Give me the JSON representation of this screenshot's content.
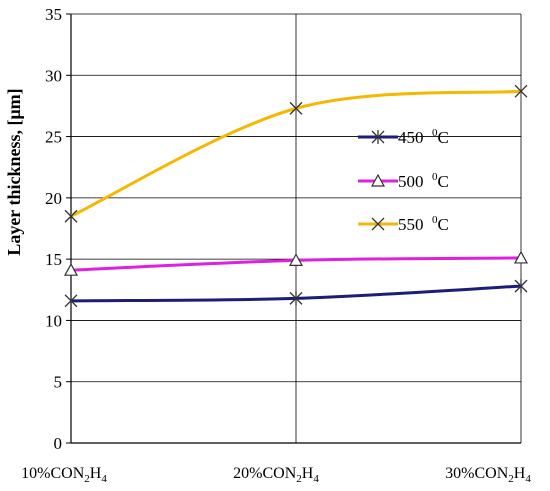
{
  "chart_data": {
    "type": "line",
    "title": "",
    "xlabel": "",
    "ylabel": "Layer thickness, [μm]",
    "ylim": [
      0,
      35
    ],
    "yticks": [
      "0",
      "5",
      "10",
      "15",
      "20",
      "25",
      "30",
      "35"
    ],
    "categories": [
      {
        "main": "10%CON",
        "sub": "2",
        "main2": "H",
        "sub2": "4"
      },
      {
        "main": "20%CON",
        "sub": "2",
        "main2": "H",
        "sub2": "4"
      },
      {
        "main": "30%CON",
        "sub": "2",
        "main2": "H",
        "sub2": "4"
      }
    ],
    "grid": true,
    "legend_position": "right",
    "series": [
      {
        "name": "450",
        "unit_sup": "0",
        "unit": "C",
        "color": "#1c1c7a",
        "marker": "star",
        "values": [
          11.6,
          11.8,
          12.8
        ]
      },
      {
        "name": "500",
        "unit_sup": "0",
        "unit": "C",
        "color": "#e020e0",
        "marker": "triangle",
        "values": [
          14.1,
          14.9,
          15.1
        ]
      },
      {
        "name": "550",
        "unit_sup": "0",
        "unit": "C",
        "color": "#f5b800",
        "marker": "x",
        "values": [
          18.5,
          27.3,
          28.7
        ]
      }
    ]
  }
}
